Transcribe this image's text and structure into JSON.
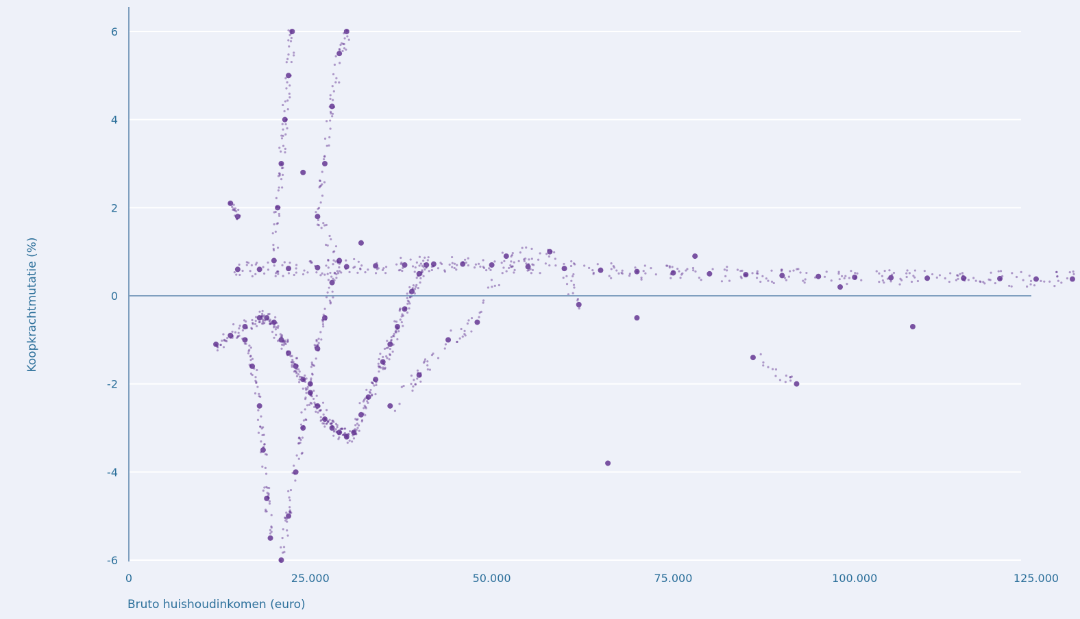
{
  "chart_data": {
    "type": "scatter",
    "title": "",
    "xlabel": "Bruto huishoudinkomen (euro)",
    "ylabel": "Koopkrachtmutatie (%)",
    "xlim": [
      0,
      130000
    ],
    "ylim": [
      -6,
      6.6
    ],
    "x_ticks": [
      0,
      25000,
      50000,
      75000,
      100000,
      125000
    ],
    "x_tick_labels": [
      "0",
      "25.000",
      "50.000",
      "75.000",
      "100.000",
      "125.000"
    ],
    "y_ticks": [
      -6,
      -4,
      -2,
      0,
      2,
      4,
      6
    ],
    "y_tick_labels": [
      "-6",
      "-4",
      "-2",
      "0",
      "2",
      "4",
      "6"
    ],
    "grid": "horizontal",
    "colors": {
      "points": "#5b2a8c",
      "grid": "#ffffff",
      "axis": "#7f9fbf",
      "text": "#2b6f9a",
      "background": "#eef1f9"
    },
    "series": [
      {
        "values_note": "",
        "points": [
          [
            15000,
            0.6
          ],
          [
            18000,
            0.6
          ],
          [
            22000,
            0.62
          ],
          [
            26000,
            0.64
          ],
          [
            30000,
            0.66
          ],
          [
            34000,
            0.68
          ],
          [
            38000,
            0.7
          ],
          [
            42000,
            0.72
          ],
          [
            46000,
            0.72
          ],
          [
            50000,
            0.7
          ],
          [
            55000,
            0.66
          ],
          [
            60000,
            0.62
          ],
          [
            65000,
            0.58
          ],
          [
            70000,
            0.55
          ],
          [
            75000,
            0.52
          ],
          [
            80000,
            0.5
          ],
          [
            85000,
            0.48
          ],
          [
            90000,
            0.46
          ],
          [
            95000,
            0.44
          ],
          [
            100000,
            0.42
          ],
          [
            105000,
            0.41
          ],
          [
            110000,
            0.4
          ],
          [
            115000,
            0.4
          ],
          [
            120000,
            0.39
          ],
          [
            125000,
            0.38
          ],
          [
            130000,
            0.38
          ],
          [
            12000,
            -1.1
          ],
          [
            14000,
            -0.9
          ],
          [
            16000,
            -0.7
          ],
          [
            18000,
            -0.5
          ],
          [
            19000,
            -0.5
          ],
          [
            20000,
            -0.6
          ],
          [
            21000,
            -1.0
          ],
          [
            22000,
            -1.3
          ],
          [
            23000,
            -1.6
          ],
          [
            24000,
            -1.9
          ],
          [
            25000,
            -2.2
          ],
          [
            26000,
            -2.5
          ],
          [
            27000,
            -2.8
          ],
          [
            28000,
            -3.0
          ],
          [
            29000,
            -3.1
          ],
          [
            30000,
            -3.2
          ],
          [
            31000,
            -3.1
          ],
          [
            32000,
            -2.7
          ],
          [
            33000,
            -2.3
          ],
          [
            34000,
            -1.9
          ],
          [
            35000,
            -1.5
          ],
          [
            36000,
            -1.1
          ],
          [
            37000,
            -0.7
          ],
          [
            38000,
            -0.3
          ],
          [
            39000,
            0.1
          ],
          [
            40000,
            0.5
          ],
          [
            41000,
            0.7
          ],
          [
            16000,
            -1.0
          ],
          [
            17000,
            -1.6
          ],
          [
            18000,
            -2.5
          ],
          [
            18500,
            -3.5
          ],
          [
            19000,
            -4.6
          ],
          [
            19500,
            -5.5
          ],
          [
            20000,
            0.8
          ],
          [
            20500,
            2.0
          ],
          [
            21000,
            3.0
          ],
          [
            21500,
            4.0
          ],
          [
            22000,
            5.0
          ],
          [
            22500,
            6.0
          ],
          [
            21000,
            -6.0
          ],
          [
            22000,
            -5.0
          ],
          [
            23000,
            -4.0
          ],
          [
            24000,
            -3.0
          ],
          [
            25000,
            -2.0
          ],
          [
            26000,
            -1.2
          ],
          [
            27000,
            -0.5
          ],
          [
            28000,
            0.3
          ],
          [
            29000,
            0.8
          ],
          [
            26000,
            1.8
          ],
          [
            27000,
            3.0
          ],
          [
            28000,
            4.3
          ],
          [
            29000,
            5.5
          ],
          [
            30000,
            6.0
          ],
          [
            14000,
            2.1
          ],
          [
            15000,
            1.8
          ],
          [
            24000,
            2.8
          ],
          [
            32000,
            1.2
          ],
          [
            36000,
            -2.5
          ],
          [
            40000,
            -1.8
          ],
          [
            44000,
            -1.0
          ],
          [
            48000,
            -0.6
          ],
          [
            52000,
            0.9
          ],
          [
            58000,
            1.0
          ],
          [
            62000,
            -0.2
          ],
          [
            66000,
            -3.8
          ],
          [
            70000,
            -0.5
          ],
          [
            78000,
            0.9
          ],
          [
            86000,
            -1.4
          ],
          [
            92000,
            -2.0
          ],
          [
            98000,
            0.2
          ],
          [
            108000,
            -0.7
          ]
        ]
      }
    ]
  }
}
